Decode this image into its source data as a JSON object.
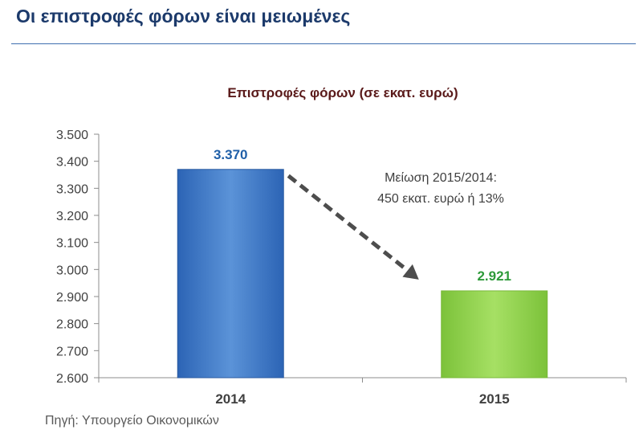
{
  "page": {
    "title": "Οι επιστροφές φόρων είναι μειωμένες",
    "source": "Πηγή:  Υπουργείο Οικονομικών"
  },
  "colors": {
    "title": "#1c3a6b",
    "rule": "#3f6fb0",
    "chart_title": "#5a1a1a",
    "bar_2014_light": "#5b93d8",
    "bar_2014_dark": "#2c64b5",
    "bar_2015_light": "#a6e064",
    "bar_2015_dark": "#7cc23a",
    "label_2014": "#1f5fa8",
    "label_2015": "#2e9a3a",
    "arrow": "#4d4d4d",
    "annotation": "#404040"
  },
  "chart_data": {
    "type": "bar",
    "title": "Επιστροφές φόρων (σε εκατ. ευρώ)",
    "categories": [
      "2014",
      "2015"
    ],
    "values": [
      3370,
      2921
    ],
    "value_labels": [
      "3.370",
      "2.921"
    ],
    "ylim": [
      2600,
      3500
    ],
    "yticks": [
      3500,
      3400,
      3300,
      3200,
      3100,
      3000,
      2900,
      2800,
      2700,
      2600
    ],
    "ytick_labels": [
      "3.500",
      "3.400",
      "3.300",
      "3.200",
      "3.100",
      "3.000",
      "2.900",
      "2.800",
      "2.700",
      "2.600"
    ],
    "xlabel": "",
    "ylabel": "",
    "grid": false,
    "legend": "none",
    "annotation": {
      "lines": [
        "Μείωση 2015/2014:",
        "450 εκατ. ευρώ ή 13%"
      ],
      "arrow": "dashed, from 2014 bar down to 2015 bar"
    }
  }
}
